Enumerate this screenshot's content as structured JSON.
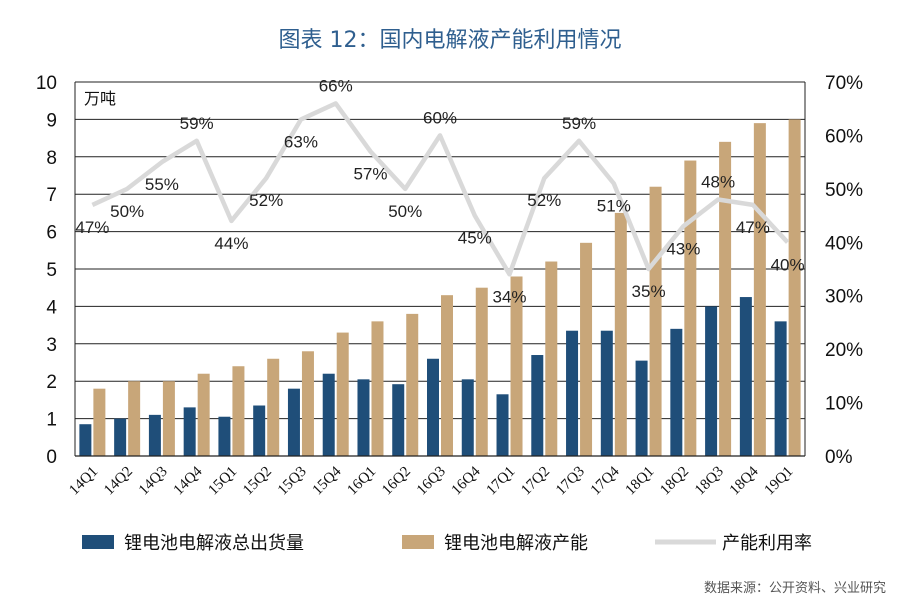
{
  "title": "图表 12：国内电解液产能利用情况",
  "source": "数据来源：公开资料、兴业研究",
  "chart_data": {
    "type": "bar",
    "title": "图表 12：国内电解液产能利用情况",
    "y_unit": "万吨",
    "ylim": [
      0,
      10
    ],
    "y_ticks": [
      "0",
      "1",
      "2",
      "3",
      "4",
      "5",
      "6",
      "7",
      "8",
      "9",
      "10"
    ],
    "y2lim": [
      0,
      0.7
    ],
    "y2_ticks": [
      "0%",
      "10%",
      "20%",
      "30%",
      "40%",
      "50%",
      "60%",
      "70%"
    ],
    "grid": true,
    "legend_position": "bottom",
    "categories": [
      "14Q1",
      "14Q2",
      "14Q3",
      "14Q4",
      "15Q1",
      "15Q2",
      "15Q3",
      "15Q4",
      "16Q1",
      "16Q2",
      "16Q3",
      "16Q4",
      "17Q1",
      "17Q2",
      "17Q3",
      "17Q4",
      "18Q1",
      "18Q2",
      "18Q3",
      "18Q4",
      "19Q1"
    ],
    "series": [
      {
        "name": "锂电池电解液总出货量",
        "type": "bar",
        "axis": "left",
        "color": "#1f4e79",
        "values": [
          0.85,
          1.0,
          1.1,
          1.3,
          1.05,
          1.35,
          1.8,
          2.2,
          2.05,
          1.92,
          2.6,
          2.05,
          1.65,
          2.7,
          3.35,
          3.35,
          2.55,
          3.4,
          4.0,
          4.25,
          3.6
        ]
      },
      {
        "name": "锂电池电解液产能",
        "type": "bar",
        "axis": "left",
        "color": "#c8a679",
        "values": [
          1.8,
          2.0,
          2.0,
          2.2,
          2.4,
          2.6,
          2.8,
          3.3,
          3.6,
          3.8,
          4.3,
          4.5,
          4.8,
          5.2,
          5.7,
          6.5,
          7.2,
          7.9,
          8.4,
          8.9,
          9.0
        ]
      },
      {
        "name": "产能利用率",
        "type": "line",
        "axis": "right",
        "color": "#d9d9d9",
        "values": [
          0.47,
          0.5,
          0.55,
          0.59,
          0.44,
          0.52,
          0.63,
          0.66,
          0.57,
          0.5,
          0.6,
          0.45,
          0.34,
          0.52,
          0.59,
          0.51,
          0.35,
          0.43,
          0.48,
          0.47,
          0.4
        ]
      }
    ],
    "data_labels": [
      "47%",
      "50%",
      "55%",
      "59%",
      "44%",
      "52%",
      "63%",
      "66%",
      "57%",
      "50%",
      "60%",
      "45%",
      "34%",
      "52%",
      "59%",
      "51%",
      "35%",
      "43%",
      "48%",
      "47%",
      "40%"
    ]
  }
}
